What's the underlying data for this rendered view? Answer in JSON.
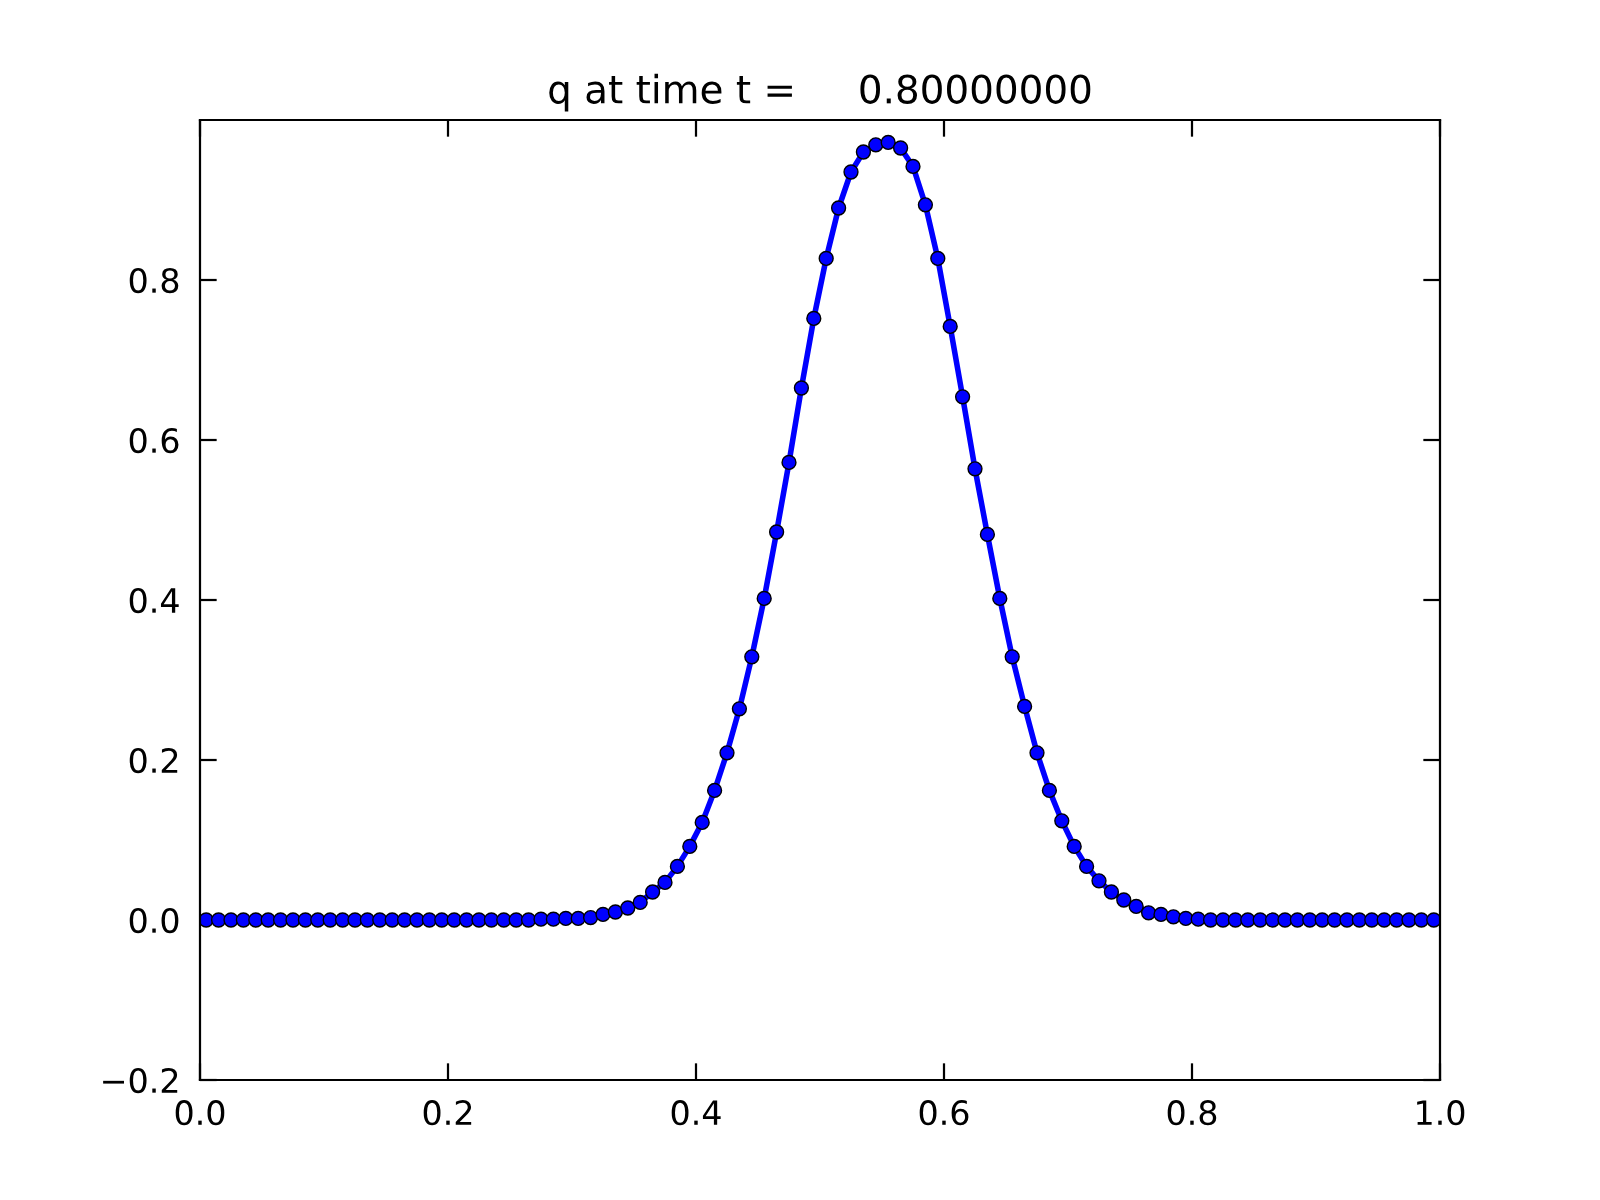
{
  "chart_data": {
    "type": "line",
    "title": "q at time t =     0.80000000",
    "x": [
      0.005,
      0.015,
      0.025,
      0.035,
      0.045,
      0.055,
      0.065,
      0.075,
      0.085,
      0.095,
      0.105,
      0.115,
      0.125,
      0.135,
      0.145,
      0.155,
      0.165,
      0.175,
      0.185,
      0.195,
      0.205,
      0.215,
      0.225,
      0.235,
      0.245,
      0.255,
      0.265,
      0.275,
      0.285,
      0.295,
      0.305,
      0.315,
      0.325,
      0.335,
      0.345,
      0.355,
      0.365,
      0.375,
      0.385,
      0.395,
      0.405,
      0.415,
      0.425,
      0.435,
      0.445,
      0.455,
      0.465,
      0.475,
      0.485,
      0.495,
      0.505,
      0.515,
      0.525,
      0.535,
      0.545,
      0.555,
      0.565,
      0.575,
      0.585,
      0.595,
      0.605,
      0.615,
      0.625,
      0.635,
      0.645,
      0.655,
      0.665,
      0.675,
      0.685,
      0.695,
      0.705,
      0.715,
      0.725,
      0.735,
      0.745,
      0.755,
      0.765,
      0.775,
      0.785,
      0.795,
      0.805,
      0.815,
      0.825,
      0.835,
      0.845,
      0.855,
      0.865,
      0.875,
      0.885,
      0.895,
      0.905,
      0.915,
      0.925,
      0.935,
      0.945,
      0.955,
      0.965,
      0.975,
      0.985,
      0.995
    ],
    "series": [
      {
        "color": "#0000ff",
        "values": [
          0,
          0,
          0,
          0,
          0,
          0,
          0,
          0,
          0,
          0,
          0,
          0,
          0,
          0,
          0,
          0,
          0,
          0,
          0,
          0,
          0,
          0,
          0,
          0,
          0,
          0,
          0,
          0.001,
          0.001,
          0.002,
          0.002,
          0.003,
          0.007,
          0.01,
          0.015,
          0.022,
          0.035,
          0.047,
          0.067,
          0.092,
          0.122,
          0.162,
          0.209,
          0.264,
          0.329,
          0.402,
          0.485,
          0.572,
          0.665,
          0.752,
          0.827,
          0.89,
          0.935,
          0.96,
          0.969,
          0.972,
          0.965,
          0.942,
          0.894,
          0.827,
          0.742,
          0.654,
          0.564,
          0.482,
          0.402,
          0.329,
          0.267,
          0.209,
          0.162,
          0.124,
          0.092,
          0.067,
          0.049,
          0.035,
          0.025,
          0.017,
          0.009,
          0.007,
          0.004,
          0.002,
          0.001,
          0,
          0,
          0,
          0,
          0,
          0,
          0,
          0,
          0,
          0,
          0,
          0,
          0,
          0,
          0,
          0,
          0,
          0,
          0
        ]
      }
    ],
    "xlim": [
      0.0,
      1.0
    ],
    "xticks": [
      {
        "value": 0,
        "label": "0.0"
      },
      0.2,
      0.4,
      0.6,
      0.8,
      {
        "value": 1,
        "label": "1.0"
      }
    ],
    "ylim": [
      -0.2,
      1.0
    ],
    "yticks": [
      {
        "value": -0.2,
        "label": "−0.2"
      },
      {
        "value": 0,
        "label": "0.0"
      },
      0.2,
      0.4,
      0.6,
      0.8
    ],
    "marker": "circle",
    "line_style": "solid",
    "grid": false
  }
}
